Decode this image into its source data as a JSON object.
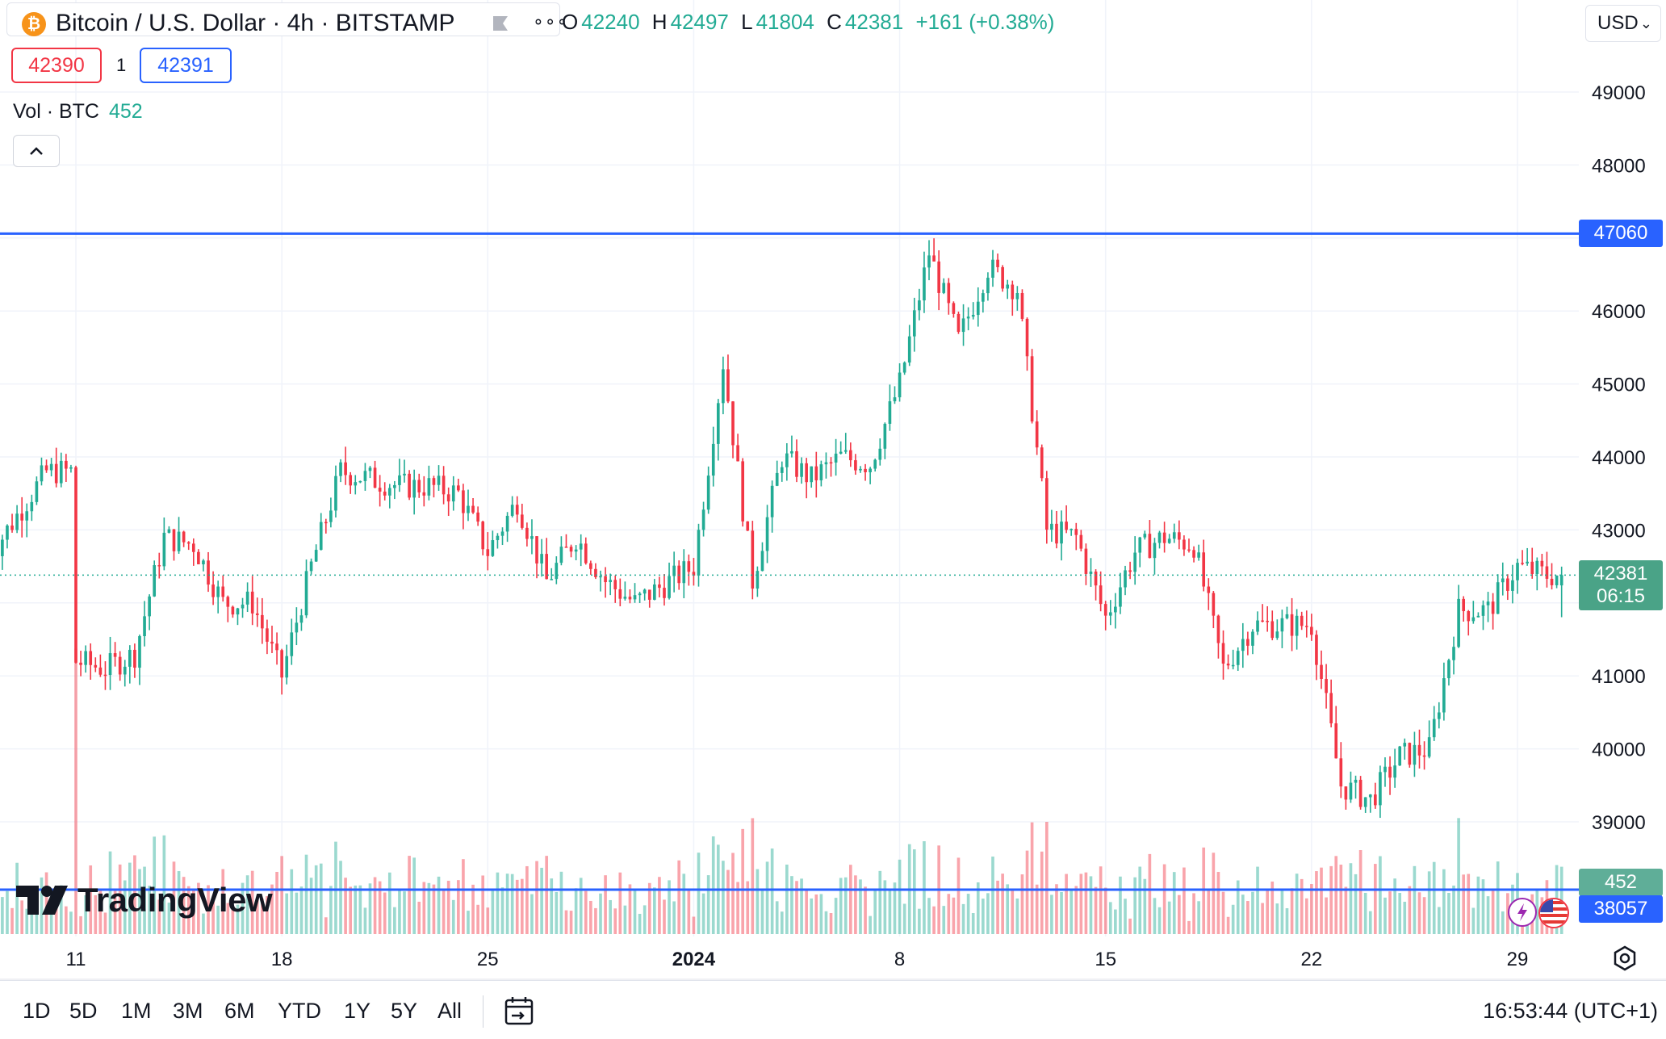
{
  "header": {
    "symbol_title": "Bitcoin / U.S. Dollar · 4h · BITSTAMP",
    "logo_glyph": "₿",
    "more_glyph": "∘∘∘",
    "ohlc": {
      "open_label": "O",
      "open": "42240",
      "high_label": "H",
      "high": "42497",
      "low_label": "L",
      "low": "41804",
      "close_label": "C",
      "close": "42381",
      "change": "+161 (+0.38%)"
    },
    "sell_price": "42390",
    "spread": "1",
    "buy_price": "42391",
    "volume_label": "Vol · BTC",
    "volume_value": "452",
    "currency": "USD",
    "currency_chevron": "⌄"
  },
  "price_tags": {
    "horizontal_line": "47060",
    "last_price": "42381",
    "countdown": "06:15",
    "volume": "452",
    "lower_line": "38057"
  },
  "watermark": "TradingView",
  "toolbar": {
    "ranges": [
      "1D",
      "5D",
      "1M",
      "3M",
      "6M",
      "YTD",
      "1Y",
      "5Y",
      "All"
    ],
    "clock": "16:53:44 (UTC+1)"
  },
  "colors": {
    "up": "#22ab94",
    "down": "#f23645",
    "line": "#2962ff",
    "grid": "#f0f3fa"
  },
  "chart_data": {
    "type": "candlestick",
    "interval": "4h",
    "y_axis": {
      "ticks": [
        39000,
        40000,
        41000,
        42000,
        43000,
        44000,
        45000,
        46000,
        47000,
        48000,
        49000
      ],
      "tick_labels": [
        "39000",
        "40000",
        "41000",
        "",
        "43000",
        "44000",
        "45000",
        "46000",
        "",
        "48000",
        "49000"
      ],
      "range": [
        37850,
        50000
      ],
      "position": "right"
    },
    "x_axis": {
      "tick_labels": [
        "11",
        "18",
        "25",
        "2024",
        "8",
        "15",
        "22",
        "29"
      ],
      "tick_dates": [
        "2023-12-11",
        "2023-12-18",
        "2023-12-25",
        "2024-01-01",
        "2024-01-08",
        "2024-01-15",
        "2024-01-22",
        "2024-01-29"
      ],
      "range": [
        "2023-12-08",
        "2024-01-31"
      ]
    },
    "horizontal_lines": [
      47060,
      38057
    ],
    "last_price": 42381,
    "volume": {
      "last": 452
    },
    "anchors": [
      [
        "2023-12-08",
        42600
      ],
      [
        "2023-12-10",
        43800
      ],
      [
        "2023-12-11",
        43800
      ],
      [
        "2023-12-11",
        41200
      ],
      [
        "2023-12-12",
        41100
      ],
      [
        "2023-12-13",
        41300
      ],
      [
        "2023-12-14",
        42900
      ],
      [
        "2023-12-15",
        42800
      ],
      [
        "2023-12-16",
        42000
      ],
      [
        "2023-12-17",
        42000
      ],
      [
        "2023-12-18",
        41000
      ],
      [
        "2023-12-19",
        42500
      ],
      [
        "2023-12-20",
        43800
      ],
      [
        "2023-12-21",
        43700
      ],
      [
        "2023-12-22",
        43600
      ],
      [
        "2023-12-23",
        43600
      ],
      [
        "2023-12-24",
        43500
      ],
      [
        "2023-12-25",
        42700
      ],
      [
        "2023-12-26",
        43400
      ],
      [
        "2023-12-27",
        42300
      ],
      [
        "2023-12-28",
        42900
      ],
      [
        "2023-12-29",
        42300
      ],
      [
        "2023-12-30",
        42000
      ],
      [
        "2024-01-01",
        42500
      ],
      [
        "2024-01-02",
        45300
      ],
      [
        "2024-01-03",
        42300
      ],
      [
        "2024-01-04",
        44000
      ],
      [
        "2024-01-05",
        43700
      ],
      [
        "2024-01-06",
        44000
      ],
      [
        "2024-01-07",
        43900
      ],
      [
        "2024-01-08",
        45000
      ],
      [
        "2024-01-09",
        46800
      ],
      [
        "2024-01-10",
        45600
      ],
      [
        "2024-01-11",
        46600
      ],
      [
        "2024-01-12",
        46300
      ],
      [
        "2024-01-13",
        43000
      ],
      [
        "2024-01-14",
        42900
      ],
      [
        "2024-01-15",
        41800
      ],
      [
        "2024-01-16",
        42700
      ],
      [
        "2024-01-17",
        42900
      ],
      [
        "2024-01-18",
        42800
      ],
      [
        "2024-01-19",
        41100
      ],
      [
        "2024-01-20",
        41700
      ],
      [
        "2024-01-21",
        41700
      ],
      [
        "2024-01-22",
        41700
      ],
      [
        "2024-01-23",
        39500
      ],
      [
        "2024-01-24",
        39300
      ],
      [
        "2024-01-25",
        39900
      ],
      [
        "2024-01-26",
        40000
      ],
      [
        "2024-01-27",
        41900
      ],
      [
        "2024-01-28",
        41900
      ],
      [
        "2024-01-29",
        42500
      ],
      [
        "2024-01-30",
        42381
      ]
    ]
  }
}
